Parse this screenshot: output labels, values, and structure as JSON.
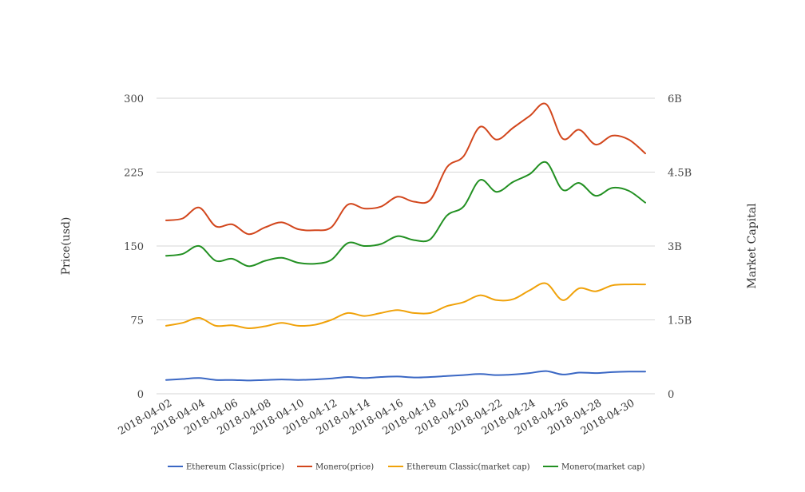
{
  "chart_data": {
    "type": "line",
    "x": [
      "2018-04-02",
      "2018-04-03",
      "2018-04-04",
      "2018-04-05",
      "2018-04-06",
      "2018-04-07",
      "2018-04-08",
      "2018-04-09",
      "2018-04-10",
      "2018-04-11",
      "2018-04-12",
      "2018-04-13",
      "2018-04-14",
      "2018-04-15",
      "2018-04-16",
      "2018-04-17",
      "2018-04-18",
      "2018-04-19",
      "2018-04-20",
      "2018-04-21",
      "2018-04-22",
      "2018-04-23",
      "2018-04-24",
      "2018-04-25",
      "2018-04-26",
      "2018-04-27",
      "2018-04-28",
      "2018-04-29",
      "2018-04-30",
      "2018-05-01"
    ],
    "x_tick_labels": [
      "2018-04-02",
      "2018-04-04",
      "2018-04-06",
      "2018-04-08",
      "2018-04-10",
      "2018-04-12",
      "2018-04-14",
      "2018-04-16",
      "2018-04-18",
      "2018-04-20",
      "2018-04-22",
      "2018-04-24",
      "2018-04-26",
      "2018-04-28",
      "2018-04-30"
    ],
    "ylabel": "Price(usd)",
    "y2label": "Market Capital",
    "ylim": [
      0,
      300
    ],
    "y2lim": [
      0,
      6000000000
    ],
    "y_ticks": [
      "0",
      "75",
      "150",
      "225",
      "300"
    ],
    "y2_ticks": [
      "0",
      "1.5B",
      "3B",
      "4.5B",
      "6B"
    ],
    "grid": true,
    "legend_position": "bottom",
    "series": [
      {
        "name": "Ethereum Classic(price)",
        "color": "#3a67c4",
        "axis": "left",
        "values": [
          14,
          15,
          16,
          14,
          14,
          13.5,
          14,
          14.5,
          14,
          14.5,
          15.5,
          17,
          16,
          17,
          17.5,
          16.5,
          17,
          18,
          19,
          20,
          19,
          19.5,
          21,
          23,
          19.5,
          21.5,
          21,
          22,
          22.5,
          22.5
        ]
      },
      {
        "name": "Monero(price)",
        "color": "#d2461c",
        "axis": "left",
        "values": [
          176,
          178,
          189,
          170,
          172,
          162,
          169,
          174,
          167,
          166,
          169,
          192,
          188,
          190,
          200,
          195,
          197,
          230,
          241,
          271,
          258,
          270,
          282,
          294,
          259,
          268,
          253,
          262,
          258,
          244
        ]
      },
      {
        "name": "Ethereum Classic(market cap)",
        "color": "#f0a20a",
        "axis": "right",
        "values": [
          1380000000,
          1440000000,
          1540000000,
          1380000000,
          1390000000,
          1330000000,
          1370000000,
          1440000000,
          1380000000,
          1400000000,
          1500000000,
          1640000000,
          1580000000,
          1640000000,
          1700000000,
          1640000000,
          1640000000,
          1780000000,
          1860000000,
          2000000000,
          1900000000,
          1920000000,
          2100000000,
          2240000000,
          1900000000,
          2140000000,
          2080000000,
          2200000000,
          2220000000,
          2220000000
        ]
      },
      {
        "name": "Monero(market cap)",
        "color": "#229022",
        "axis": "right",
        "values": [
          2800000000,
          2840000000,
          3000000000,
          2700000000,
          2740000000,
          2590000000,
          2700000000,
          2760000000,
          2660000000,
          2640000000,
          2720000000,
          3060000000,
          3000000000,
          3040000000,
          3200000000,
          3120000000,
          3140000000,
          3620000000,
          3800000000,
          4340000000,
          4100000000,
          4300000000,
          4460000000,
          4700000000,
          4140000000,
          4280000000,
          4020000000,
          4180000000,
          4120000000,
          3880000000
        ]
      }
    ]
  }
}
